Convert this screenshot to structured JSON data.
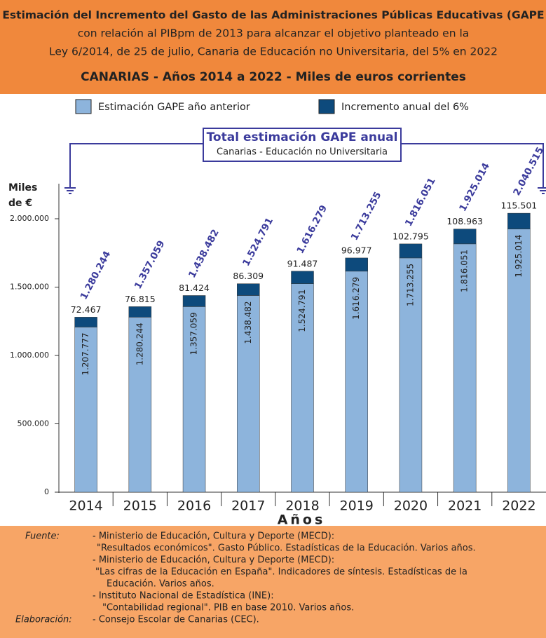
{
  "chart_data": {
    "type": "stacked-bar",
    "title_lines": [
      "Estimación del Incremento del Gasto de las Administraciones Públicas Educativas (GAPE",
      "con relación al PIBpm de 2013 para alcanzar el objetivo planteado en la",
      "Ley 6/2014, de 25 de julio, Canaria de Educación no Universitaria, del 5% en 2022"
    ],
    "subtitle": "CANARIAS  -  Años 2014 a 2022  -  Miles de euros corrientes",
    "ylabel_lines": [
      "Miles",
      "de €"
    ],
    "xlabel": "Años",
    "categories": [
      "2014",
      "2015",
      "2016",
      "2017",
      "2018",
      "2019",
      "2020",
      "2021",
      "2022"
    ],
    "series": [
      {
        "name": "Estimación GAPE año anterior",
        "color": "#8db4dc",
        "values": [
          1207777,
          1280244,
          1357059,
          1438482,
          1524791,
          1616279,
          1713255,
          1816051,
          1925014
        ],
        "value_labels": [
          "1.207.777",
          "1.280.244",
          "1.357.059",
          "1.438.482",
          "1.524.791",
          "1.616.279",
          "1.713.255",
          "1.816.051",
          "1.925.014"
        ]
      },
      {
        "name": "Incremento anual del 6%",
        "color": "#0d4a7c",
        "values": [
          72467,
          76815,
          81424,
          86309,
          91487,
          96977,
          102795,
          108963,
          115501
        ],
        "value_labels": [
          "72.467",
          "76.815",
          "81.424",
          "86.309",
          "91.487",
          "96.977",
          "102.795",
          "108.963",
          "115.501"
        ]
      }
    ],
    "total_annotation": {
      "title": "Total estimación GAPE anual",
      "subtitle": "Canarias - Educación no Universitaria",
      "color": "#3b3b9c"
    },
    "totals": [
      1280244,
      1357059,
      1438482,
      1524791,
      1616279,
      1713255,
      1816051,
      1925014,
      2040515
    ],
    "total_labels": [
      "1.280.244",
      "1.357.059",
      "1.438.482",
      "1.524.791",
      "1.616.279",
      "1.713.255",
      "1.816.051",
      "1.925.014",
      "2.040.515"
    ],
    "ylim": [
      0,
      2200000
    ],
    "yticks": [
      0,
      {
        "value": 500000,
        "label": "500.000"
      },
      {
        "value": 1000000,
        "label": "1.000.000"
      },
      {
        "value": 1500000,
        "label": "1.500.000"
      },
      {
        "value": 2000000,
        "label": "2.000.000"
      }
    ]
  },
  "footer": {
    "source_label": "Fuente:",
    "source_lines": [
      "- Ministerio de Educación, Cultura y Deporte (MECD):",
      "\"Resultados económicos\". Gasto Público. Estadísticas de la Educación. Varios años.",
      "- Ministerio de Educación, Cultura y Deporte (MECD):",
      "\"Las cifras de la Educación en España\". Indicadores de síntesis. Estadísticas de la",
      "Educación. Varios años.",
      "- Instituto Nacional de Estadística (INE):",
      "\"Contabilidad regional\". PIB en base 2010. Varios años."
    ],
    "author_label": "Elaboración:",
    "author_lines": [
      "- Consejo Escolar de Canarias (CEC)."
    ]
  }
}
